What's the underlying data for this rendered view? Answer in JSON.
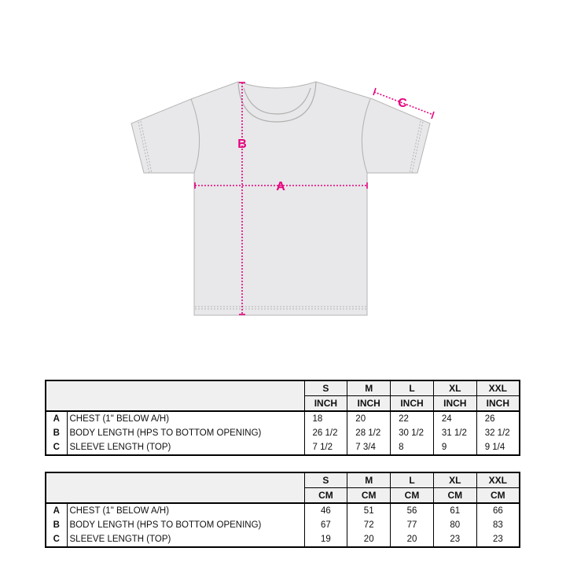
{
  "diagram": {
    "labels": {
      "a": "A",
      "b": "B",
      "c": "C"
    },
    "colors": {
      "shirt_fill": "#e8e8ea",
      "shirt_stroke": "#b5b5b5",
      "measure": "#e6007e"
    }
  },
  "tables": [
    {
      "sizes": [
        "S",
        "M",
        "L",
        "XL",
        "XXL"
      ],
      "unit": "INCH",
      "rows": [
        {
          "letter": "A",
          "label": "CHEST (1\" BELOW A/H)",
          "values": [
            "18",
            "20",
            "22",
            "24",
            "26"
          ]
        },
        {
          "letter": "B",
          "label": "BODY LENGTH (HPS TO BOTTOM OPENING)",
          "values": [
            "26 1/2",
            "28 1/2",
            "30 1/2",
            "31 1/2",
            "32 1/2"
          ]
        },
        {
          "letter": "C",
          "label": "SLEEVE LENGTH (TOP)",
          "values": [
            "7 1/2",
            "7 3/4",
            "8",
            "9",
            "9 1/4"
          ]
        }
      ]
    },
    {
      "sizes": [
        "S",
        "M",
        "L",
        "XL",
        "XXL"
      ],
      "unit": "CM",
      "rows": [
        {
          "letter": "A",
          "label": "CHEST (1\" BELOW A/H)",
          "values": [
            "46",
            "51",
            "56",
            "61",
            "66"
          ]
        },
        {
          "letter": "B",
          "label": "BODY LENGTH (HPS TO BOTTOM OPENING)",
          "values": [
            "67",
            "72",
            "77",
            "80",
            "83"
          ]
        },
        {
          "letter": "C",
          "label": "SLEEVE LENGTH (TOP)",
          "values": [
            "19",
            "20",
            "20",
            "23",
            "23"
          ]
        }
      ]
    }
  ]
}
